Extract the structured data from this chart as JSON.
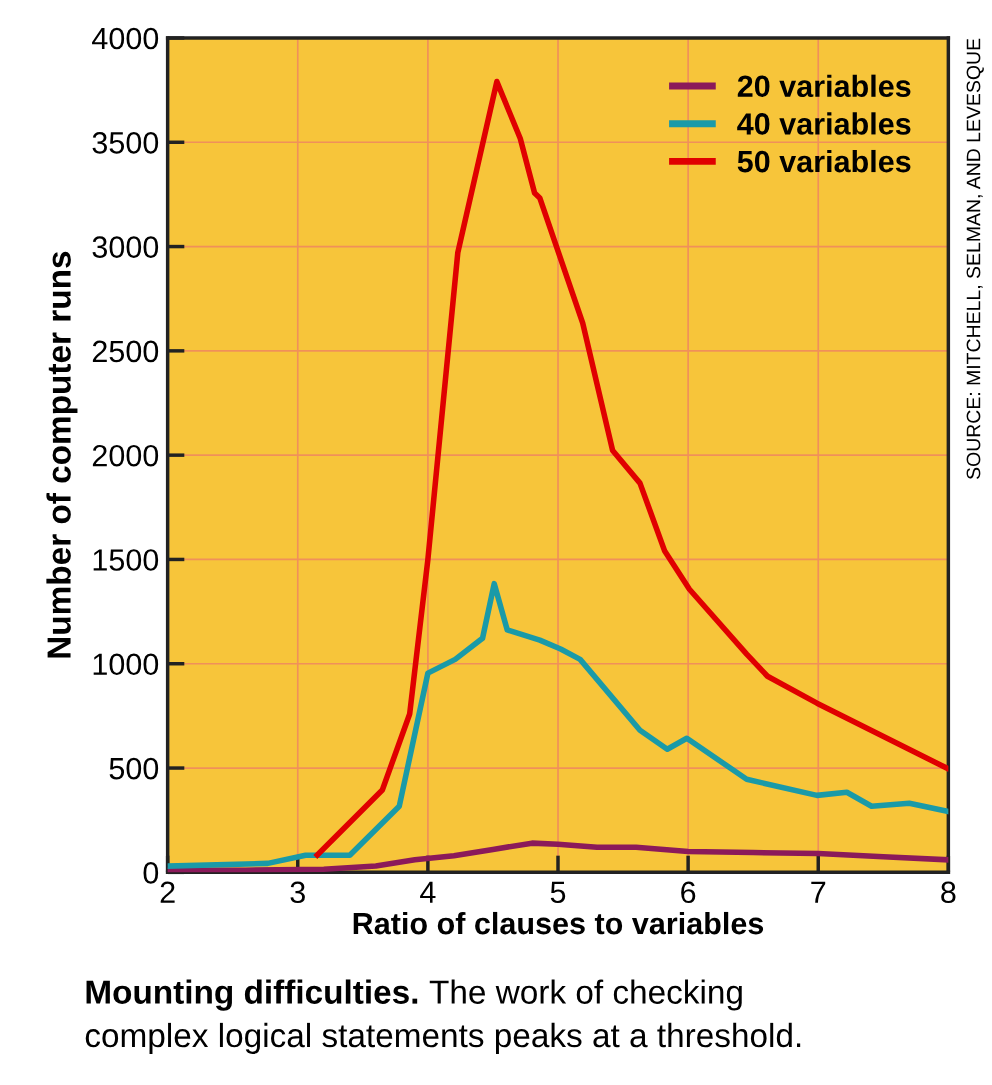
{
  "chart_data": {
    "type": "line",
    "xlabel": "Ratio of clauses to variables",
    "ylabel": "Number of computer runs",
    "xlim": [
      2,
      8
    ],
    "xticks": [
      2,
      3,
      4,
      5,
      6,
      7,
      8
    ],
    "ylim": [
      0,
      4000
    ],
    "yticks": [
      0,
      500,
      1000,
      1500,
      2000,
      2500,
      3000,
      3500,
      4000
    ],
    "grid": true,
    "legend": "top right",
    "marker": "none",
    "line_style": "solid",
    "series": [
      {
        "name": "20 variables",
        "color": "#8b1a5a",
        "x": [
          2.0,
          2.6,
          3.2,
          3.6,
          3.9,
          4.2,
          4.5,
          4.8,
          5.0,
          5.3,
          5.6,
          6.0,
          6.5,
          7.0,
          7.5,
          8.0
        ],
        "values": [
          10,
          10,
          15,
          30,
          60,
          80,
          110,
          140,
          135,
          120,
          120,
          100,
          95,
          90,
          75,
          60
        ]
      },
      {
        "name": "40 variables",
        "color": "#1a9aa8",
        "x": [
          2.0,
          2.77,
          3.06,
          3.4,
          3.78,
          4.0,
          4.21,
          4.42,
          4.51,
          4.61,
          4.86,
          5.02,
          5.17,
          5.63,
          5.84,
          5.99,
          6.45,
          6.99,
          7.22,
          7.41,
          7.7,
          7.99
        ],
        "values": [
          30,
          43,
          82,
          82,
          317,
          955,
          1021,
          1122,
          1384,
          1162,
          1113,
          1071,
          1021,
          681,
          590,
          643,
          446,
          369,
          384,
          317,
          331,
          293
        ]
      },
      {
        "name": "50 variables",
        "color": "#e00000",
        "x": [
          3.15,
          3.65,
          3.86,
          4.0,
          4.23,
          4.53,
          4.71,
          4.82,
          4.86,
          5.19,
          5.42,
          5.63,
          5.82,
          6.01,
          6.45,
          6.61,
          6.99,
          7.99
        ],
        "values": [
          83,
          395,
          759,
          1500,
          2971,
          3791,
          3518,
          3257,
          3233,
          2633,
          2022,
          1866,
          1540,
          1357,
          1046,
          940,
          811,
          499
        ]
      }
    ],
    "annotations": [
      "SOURCE: MITCHELL, SELMAN, AND LEVESQUE",
      "Mounting difficulties.",
      "The work of checking\ncomplex logical statements peaks at a threshold."
    ]
  }
}
